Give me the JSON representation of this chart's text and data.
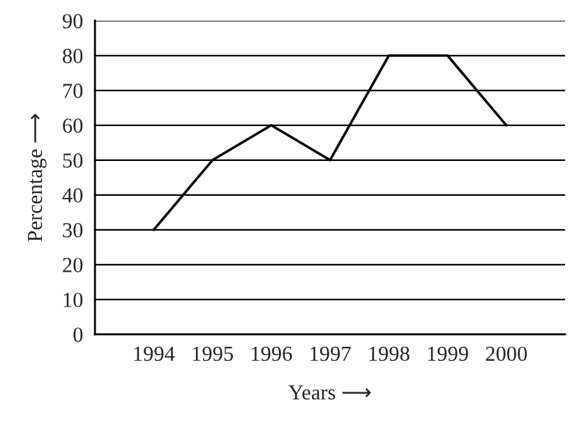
{
  "chart_data": {
    "type": "line",
    "xlabel": "Years ⟶",
    "ylabel": "Percentage ⟶",
    "categories": [
      "1994",
      "1995",
      "1996",
      "1997",
      "1998",
      "1999",
      "2000"
    ],
    "values": [
      30,
      50,
      60,
      50,
      80,
      80,
      60
    ],
    "color": "#000000",
    "ylim": [
      0,
      90
    ],
    "yticks": [
      0,
      10,
      20,
      30,
      40,
      50,
      60,
      70,
      80,
      90
    ],
    "grid": "y"
  }
}
